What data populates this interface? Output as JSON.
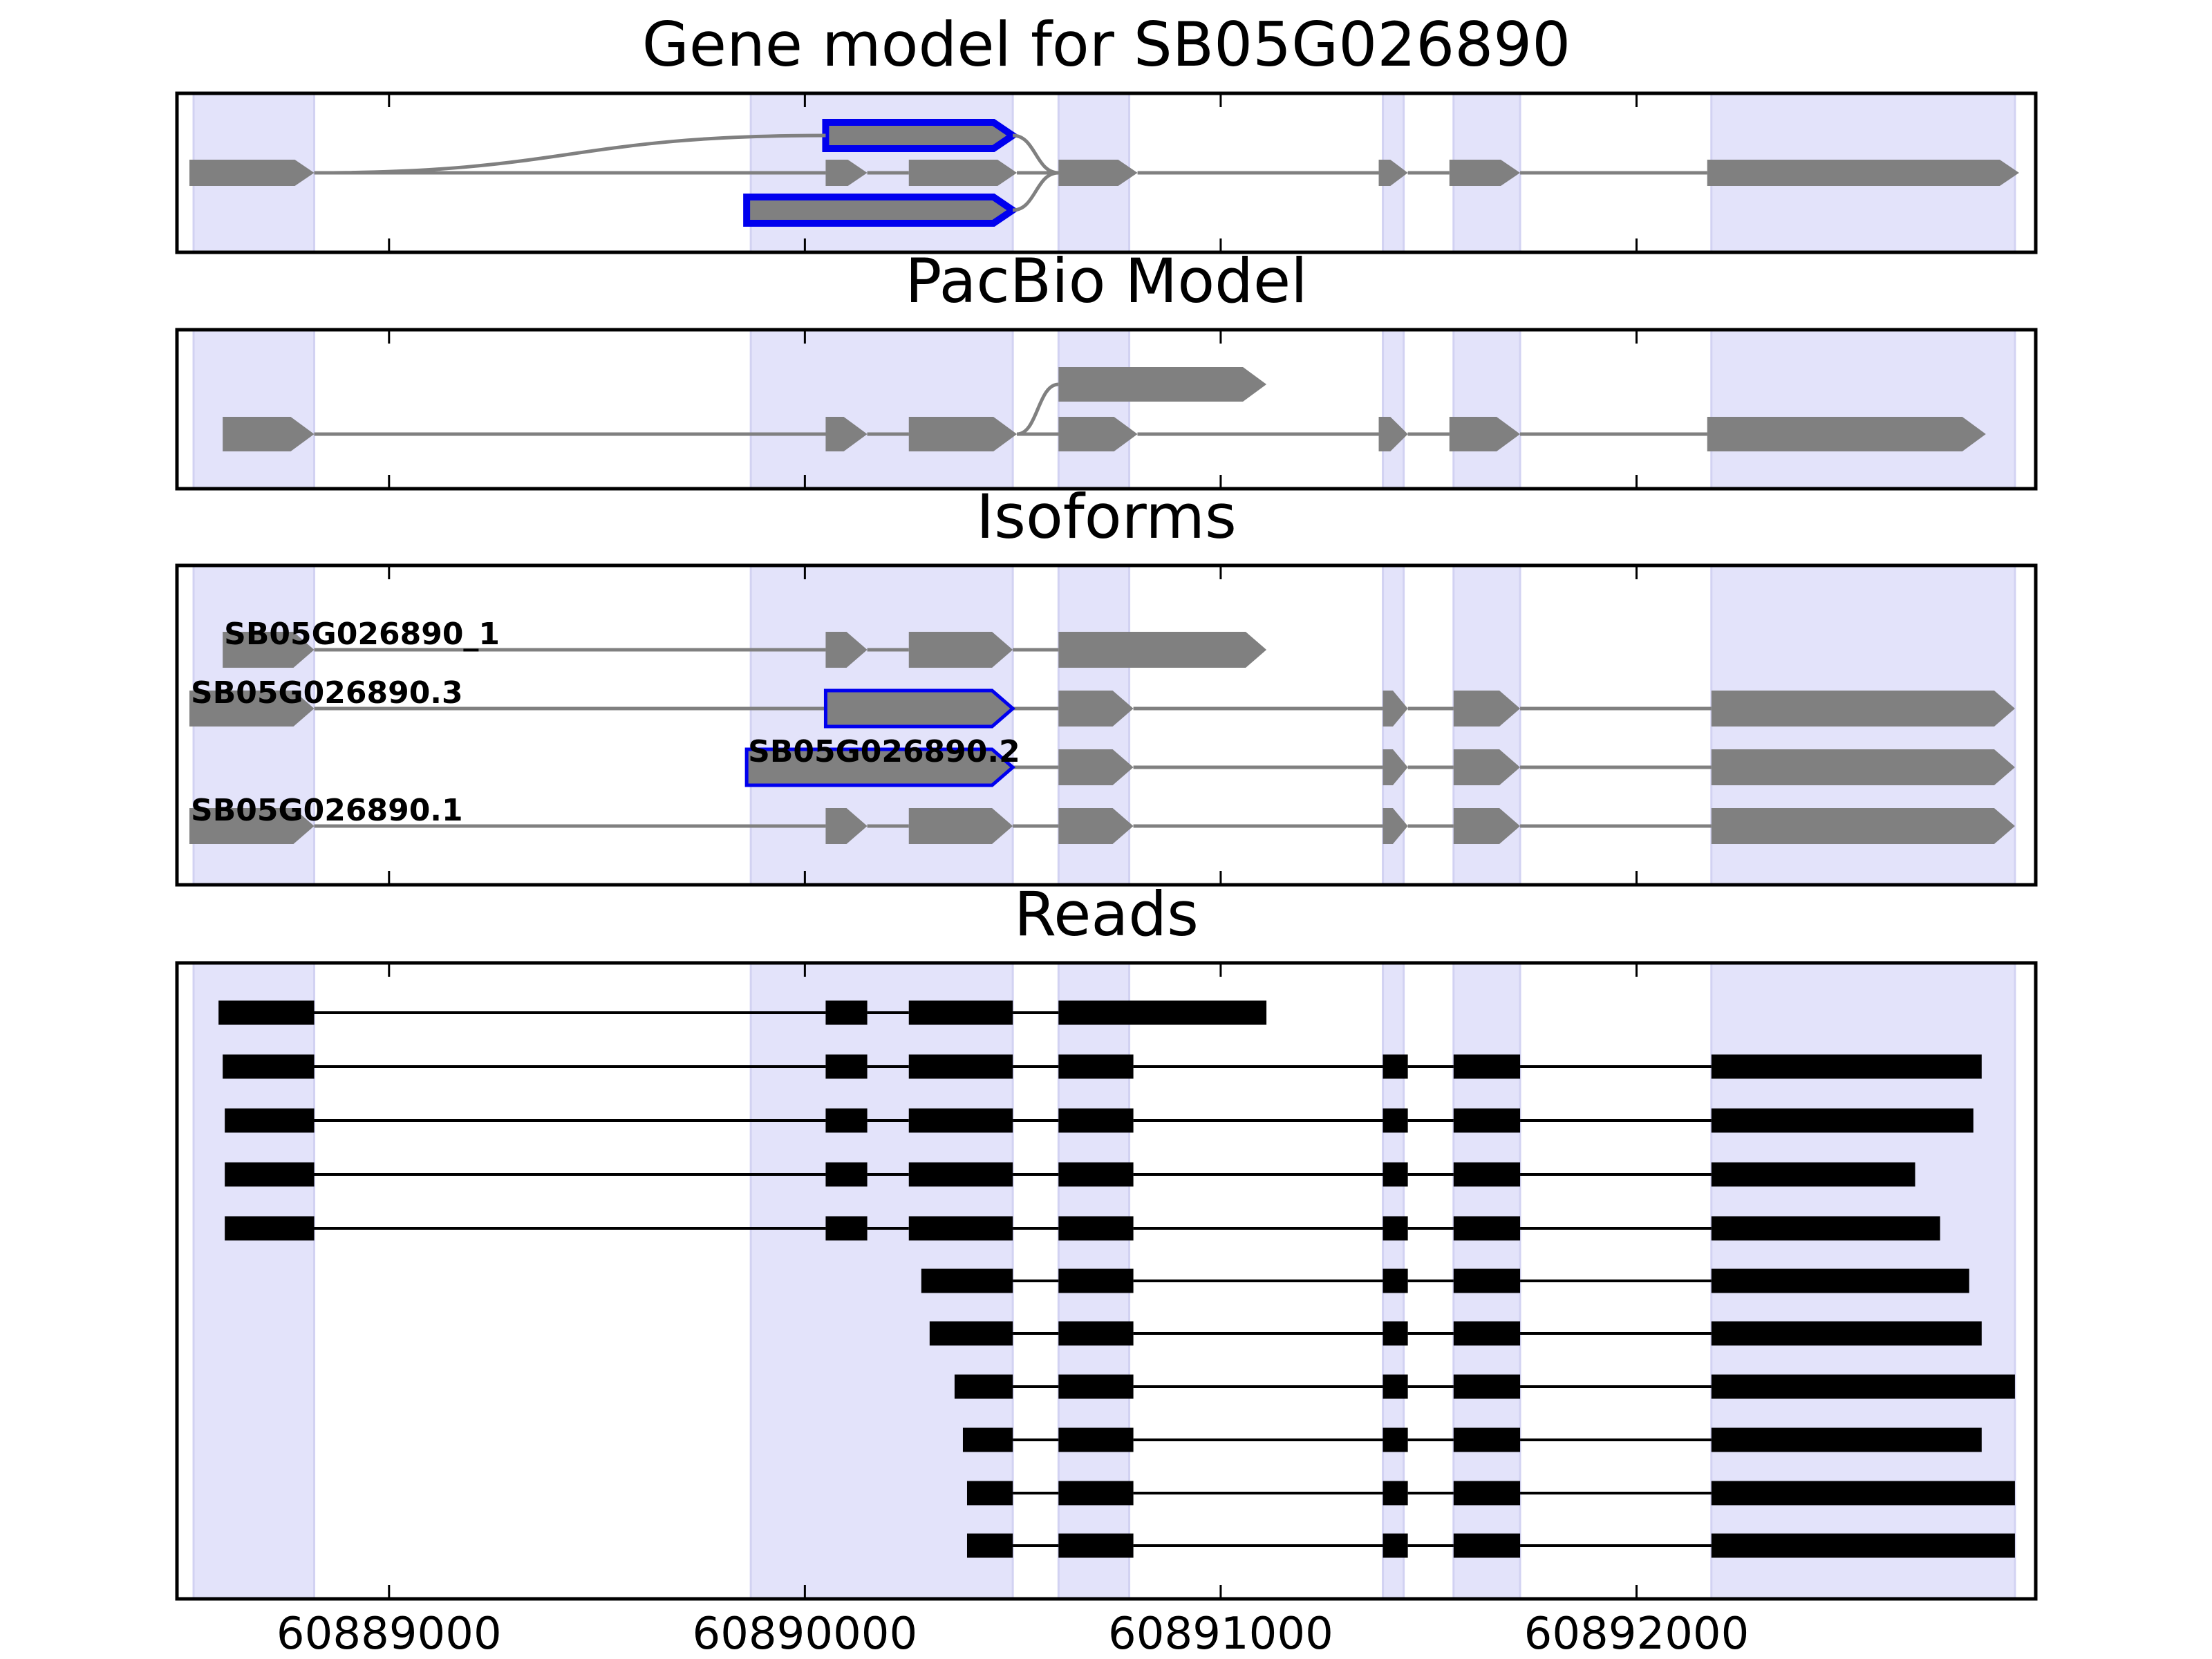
{
  "chart_data": {
    "type": "gene-track",
    "x_axis": {
      "xlim": [
        60888490,
        60892960
      ],
      "ticks": [
        60889000,
        60890000,
        60891000,
        60892000
      ],
      "tick_labels": [
        "60889000",
        "60890000",
        "60891000",
        "60892000"
      ]
    },
    "colors": {
      "exon_fill": "#808080",
      "read_fill": "#000000",
      "highlight_edge": "#0000ee",
      "shade": "#e3e3fa",
      "intron": "#808080",
      "read_intron": "#000000"
    },
    "shaded_regions": [
      [
        60888530,
        60888820
      ],
      [
        60889870,
        60890500
      ],
      [
        60890610,
        60890780
      ],
      [
        60891390,
        60891440
      ],
      [
        60891560,
        60891720
      ],
      [
        60892180,
        60892910
      ]
    ],
    "panels": [
      {
        "title": "Gene model for SB05G026890",
        "rows": [
          {
            "exons": [
              [
                60890050,
                60890500
              ]
            ],
            "highlight": true
          },
          {
            "exons": [
              [
                60888520,
                60888820
              ],
              [
                60890050,
                60890150
              ],
              [
                60890250,
                60890510
              ],
              [
                60890610,
                60890800
              ],
              [
                60891380,
                60891450
              ],
              [
                60891550,
                60891720
              ],
              [
                60892170,
                60892920
              ]
            ]
          },
          {
            "exons": [
              [
                60889860,
                60890500
              ]
            ],
            "highlight": true
          }
        ],
        "connectors": [
          {
            "from": [
              60888820,
              1
            ],
            "to": [
              60890050,
              0
            ]
          },
          {
            "from": [
              60890500,
              0
            ],
            "to": [
              60890610,
              1
            ]
          },
          {
            "from": [
              60890510,
              1
            ],
            "to": [
              60890610,
              1
            ]
          },
          {
            "from": [
              60890500,
              2
            ],
            "to": [
              60890610,
              1
            ]
          }
        ]
      },
      {
        "title": "PacBio Model",
        "rows": [
          {
            "exons": [
              [
                60890610,
                60891110
              ]
            ]
          },
          {
            "exons": [
              [
                60888600,
                60888820
              ],
              [
                60890050,
                60890150
              ],
              [
                60890250,
                60890510
              ],
              [
                60890610,
                60890800
              ],
              [
                60891380,
                60891450
              ],
              [
                60891550,
                60891720
              ],
              [
                60892170,
                60892840
              ]
            ]
          }
        ],
        "connectors": [
          {
            "from": [
              60888820,
              1
            ],
            "to": [
              60890050,
              1
            ]
          },
          {
            "from": [
              60890150,
              1
            ],
            "to": [
              60890250,
              1
            ]
          },
          {
            "from": [
              60890510,
              1
            ],
            "to": [
              60890610,
              0
            ]
          },
          {
            "from": [
              60890510,
              1
            ],
            "to": [
              60890610,
              1
            ]
          },
          {
            "from": [
              60890800,
              1
            ],
            "to": [
              60891380,
              1
            ]
          },
          {
            "from": [
              60891450,
              1
            ],
            "to": [
              60891550,
              1
            ]
          },
          {
            "from": [
              60891720,
              1
            ],
            "to": [
              60892170,
              1
            ]
          }
        ]
      },
      {
        "title": "Isoforms",
        "rows": [
          {
            "label": "SB05G026890_1",
            "exons": [
              [
                60888600,
                60888820
              ],
              [
                60890050,
                60890150
              ],
              [
                60890250,
                60890500
              ],
              [
                60890610,
                60891110
              ]
            ]
          },
          {
            "label": "SB05G026890.3",
            "exons": [
              [
                60888520,
                60888820
              ],
              [
                60890050,
                60890500
              ],
              [
                60890610,
                60890790
              ],
              [
                60891390,
                60891450
              ],
              [
                60891560,
                60891720
              ],
              [
                60892180,
                60892910
              ]
            ],
            "highlight_exons": [
              1
            ]
          },
          {
            "label": "SB05G026890.2",
            "exons": [
              [
                60889860,
                60890500
              ],
              [
                60890610,
                60890790
              ],
              [
                60891390,
                60891450
              ],
              [
                60891560,
                60891720
              ],
              [
                60892180,
                60892910
              ]
            ],
            "highlight_exons": [
              0
            ]
          },
          {
            "label": "SB05G026890.1",
            "exons": [
              [
                60888520,
                60888820
              ],
              [
                60890050,
                60890150
              ],
              [
                60890250,
                60890500
              ],
              [
                60890610,
                60890790
              ],
              [
                60891390,
                60891450
              ],
              [
                60891560,
                60891720
              ],
              [
                60892180,
                60892910
              ]
            ]
          }
        ]
      },
      {
        "title": "Reads",
        "rows": [
          {
            "exons": [
              [
                60888590,
                60888820
              ],
              [
                60890050,
                60890150
              ],
              [
                60890250,
                60890500
              ],
              [
                60890610,
                60891110
              ]
            ]
          },
          {
            "exons": [
              [
                60888600,
                60888820
              ],
              [
                60890050,
                60890150
              ],
              [
                60890250,
                60890500
              ],
              [
                60890610,
                60890790
              ],
              [
                60891390,
                60891450
              ],
              [
                60891560,
                60891720
              ],
              [
                60892180,
                60892830
              ]
            ]
          },
          {
            "exons": [
              [
                60888605,
                60888820
              ],
              [
                60890050,
                60890150
              ],
              [
                60890250,
                60890500
              ],
              [
                60890610,
                60890790
              ],
              [
                60891390,
                60891450
              ],
              [
                60891560,
                60891720
              ],
              [
                60892180,
                60892810
              ]
            ]
          },
          {
            "exons": [
              [
                60888605,
                60888820
              ],
              [
                60890050,
                60890150
              ],
              [
                60890250,
                60890500
              ],
              [
                60890610,
                60890790
              ],
              [
                60891390,
                60891450
              ],
              [
                60891560,
                60891720
              ],
              [
                60892180,
                60892670
              ]
            ]
          },
          {
            "exons": [
              [
                60888605,
                60888820
              ],
              [
                60890050,
                60890150
              ],
              [
                60890250,
                60890500
              ],
              [
                60890610,
                60890790
              ],
              [
                60891390,
                60891450
              ],
              [
                60891560,
                60891720
              ],
              [
                60892180,
                60892730
              ]
            ]
          },
          {
            "exons": [
              [
                60890280,
                60890500
              ],
              [
                60890610,
                60890790
              ],
              [
                60891390,
                60891450
              ],
              [
                60891560,
                60891720
              ],
              [
                60892180,
                60892800
              ]
            ]
          },
          {
            "exons": [
              [
                60890300,
                60890500
              ],
              [
                60890610,
                60890790
              ],
              [
                60891390,
                60891450
              ],
              [
                60891560,
                60891720
              ],
              [
                60892180,
                60892830
              ]
            ]
          },
          {
            "exons": [
              [
                60890360,
                60890500
              ],
              [
                60890610,
                60890790
              ],
              [
                60891390,
                60891450
              ],
              [
                60891560,
                60891720
              ],
              [
                60892180,
                60892910
              ]
            ]
          },
          {
            "exons": [
              [
                60890380,
                60890500
              ],
              [
                60890610,
                60890790
              ],
              [
                60891390,
                60891450
              ],
              [
                60891560,
                60891720
              ],
              [
                60892180,
                60892830
              ]
            ]
          },
          {
            "exons": [
              [
                60890390,
                60890500
              ],
              [
                60890610,
                60890790
              ],
              [
                60891390,
                60891450
              ],
              [
                60891560,
                60891720
              ],
              [
                60892180,
                60892910
              ]
            ]
          },
          {
            "exons": [
              [
                60890390,
                60890500
              ],
              [
                60890610,
                60890790
              ],
              [
                60891390,
                60891450
              ],
              [
                60891560,
                60891720
              ],
              [
                60892180,
                60892910
              ]
            ]
          }
        ]
      }
    ]
  }
}
